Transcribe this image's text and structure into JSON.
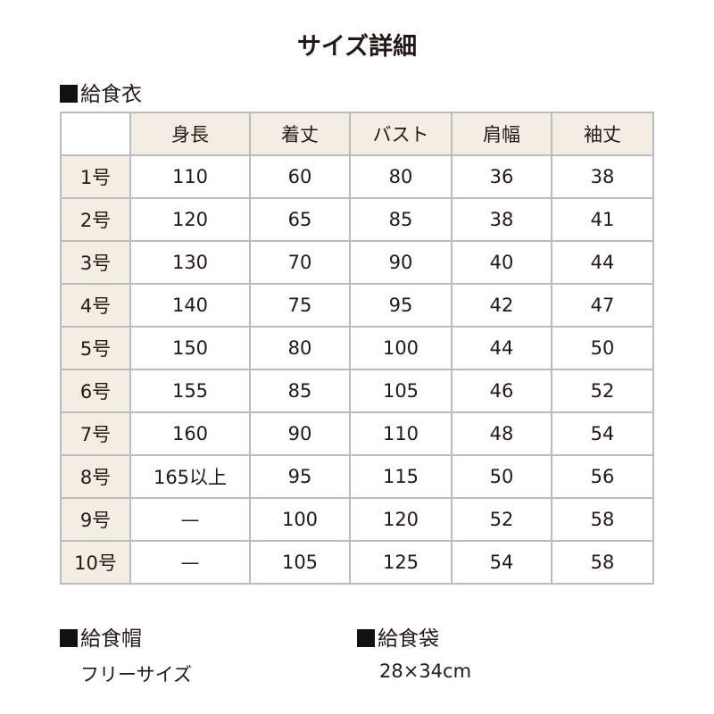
{
  "title": "サイズ詳細",
  "uniform": {
    "heading": "給食衣",
    "columns": [
      "",
      "身長",
      "着丈",
      "バスト",
      "肩幅",
      "袖丈"
    ],
    "rows": [
      [
        "1号",
        "110",
        "60",
        "80",
        "36",
        "38"
      ],
      [
        "2号",
        "120",
        "65",
        "85",
        "38",
        "41"
      ],
      [
        "3号",
        "130",
        "70",
        "90",
        "40",
        "44"
      ],
      [
        "4号",
        "140",
        "75",
        "95",
        "42",
        "47"
      ],
      [
        "5号",
        "150",
        "80",
        "100",
        "44",
        "50"
      ],
      [
        "6号",
        "155",
        "85",
        "105",
        "46",
        "52"
      ],
      [
        "7号",
        "160",
        "90",
        "110",
        "48",
        "54"
      ],
      [
        "8号",
        "165以上",
        "95",
        "115",
        "50",
        "56"
      ],
      [
        "9号",
        "—",
        "100",
        "120",
        "52",
        "58"
      ],
      [
        "10号",
        "—",
        "105",
        "125",
        "54",
        "58"
      ]
    ]
  },
  "cap": {
    "heading": "給食帽",
    "value": "フリーサイズ"
  },
  "bag": {
    "heading": "給食袋",
    "value": "28×34cm"
  },
  "colors": {
    "header_bg": "#f4ede4",
    "border": "#bcbcbc"
  }
}
